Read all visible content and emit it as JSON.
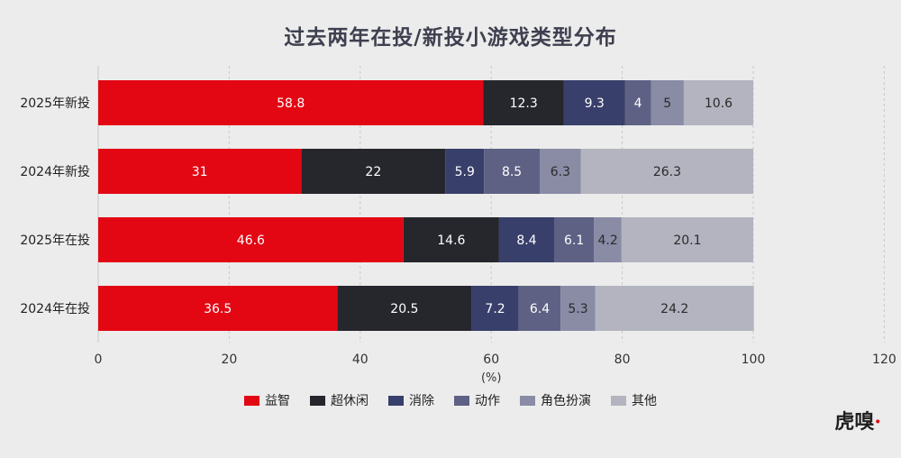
{
  "chart_data": {
    "type": "bar",
    "orientation": "horizontal",
    "stacked": true,
    "title": "过去两年在投/新投小游戏类型分布",
    "xlabel": "(%)",
    "xlim": [
      0,
      120
    ],
    "xticks": [
      "0",
      "20",
      "40",
      "60",
      "80",
      "100",
      "120"
    ],
    "categories": [
      "2025年新投",
      "2024年新投",
      "2025年在投",
      "2024年在投"
    ],
    "series": [
      {
        "name": "益智",
        "color": "#e30613",
        "label_color": "#ffffff",
        "values": [
          58.8,
          31,
          46.6,
          36.5
        ]
      },
      {
        "name": "超休闲",
        "color": "#26272d",
        "label_color": "#ffffff",
        "values": [
          12.3,
          22,
          14.6,
          20.5
        ]
      },
      {
        "name": "消除",
        "color": "#393f6b",
        "label_color": "#ffffff",
        "values": [
          9.3,
          5.9,
          8.4,
          7.2
        ]
      },
      {
        "name": "动作",
        "color": "#5e6184",
        "label_color": "#ffffff",
        "values": [
          4,
          8.5,
          6.1,
          6.4
        ]
      },
      {
        "name": "角色扮演",
        "color": "#8a8ca6",
        "label_color": "#2a2a2a",
        "values": [
          5,
          6.3,
          4.2,
          5.3
        ]
      },
      {
        "name": "其他",
        "color": "#b3b4c0",
        "label_color": "#2a2a2a",
        "values": [
          10.6,
          26.3,
          20.1,
          24.2
        ]
      }
    ],
    "grid": true,
    "legend_position": "bottom"
  },
  "watermark": {
    "text": "虎嗅"
  }
}
